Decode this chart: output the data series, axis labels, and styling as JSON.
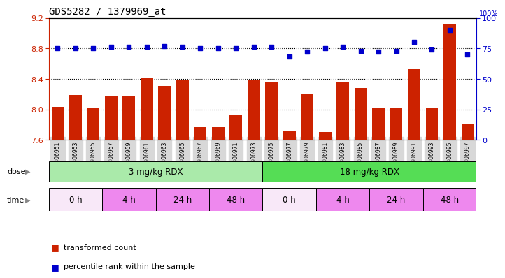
{
  "title": "GDS5282 / 1379969_at",
  "samples": [
    "GSM306951",
    "GSM306953",
    "GSM306955",
    "GSM306957",
    "GSM306959",
    "GSM306961",
    "GSM306963",
    "GSM306965",
    "GSM306967",
    "GSM306969",
    "GSM306971",
    "GSM306973",
    "GSM306975",
    "GSM306977",
    "GSM306979",
    "GSM306981",
    "GSM306983",
    "GSM306985",
    "GSM306987",
    "GSM306989",
    "GSM306991",
    "GSM306993",
    "GSM306995",
    "GSM306997"
  ],
  "bar_values": [
    8.03,
    8.19,
    8.02,
    8.17,
    8.17,
    8.42,
    8.31,
    8.38,
    7.77,
    7.77,
    7.92,
    8.38,
    8.35,
    7.72,
    8.2,
    7.7,
    8.35,
    8.28,
    8.01,
    8.01,
    8.53,
    8.01,
    9.12,
    7.8
  ],
  "dot_values": [
    75,
    75,
    75,
    76,
    76,
    76,
    77,
    76,
    75,
    75,
    75,
    76,
    76,
    68,
    72,
    75,
    76,
    73,
    72,
    73,
    80,
    74,
    90,
    70
  ],
  "ylim_left": [
    7.6,
    9.2
  ],
  "ylim_right": [
    0,
    100
  ],
  "yticks_left": [
    7.6,
    8.0,
    8.4,
    8.8,
    9.2
  ],
  "yticks_right": [
    0,
    25,
    50,
    75,
    100
  ],
  "bar_color": "#cc2200",
  "dot_color": "#0000cc",
  "dose_groups": [
    {
      "label": "3 mg/kg RDX",
      "start": 0,
      "end": 12,
      "color": "#aaeaaa"
    },
    {
      "label": "18 mg/kg RDX",
      "start": 12,
      "end": 24,
      "color": "#55dd55"
    }
  ],
  "time_groups": [
    {
      "label": "0 h",
      "start": 0,
      "end": 3
    },
    {
      "label": "4 h",
      "start": 3,
      "end": 6
    },
    {
      "label": "24 h",
      "start": 6,
      "end": 9
    },
    {
      "label": "48 h",
      "start": 9,
      "end": 12
    },
    {
      "label": "0 h",
      "start": 12,
      "end": 15
    },
    {
      "label": "4 h",
      "start": 15,
      "end": 18
    },
    {
      "label": "24 h",
      "start": 18,
      "end": 21
    },
    {
      "label": "48 h",
      "start": 21,
      "end": 24
    }
  ],
  "time_color_0h": "#f8e8f8",
  "time_color_other": "#ee88ee",
  "legend_items": [
    {
      "label": "transformed count",
      "color": "#cc2200"
    },
    {
      "label": "percentile rank within the sample",
      "color": "#0000cc"
    }
  ],
  "hline_ticks": [
    8.0,
    8.4,
    8.8
  ],
  "bg_plot": "#ffffff",
  "bg_fig": "#ffffff",
  "bar_baseline": 7.6
}
